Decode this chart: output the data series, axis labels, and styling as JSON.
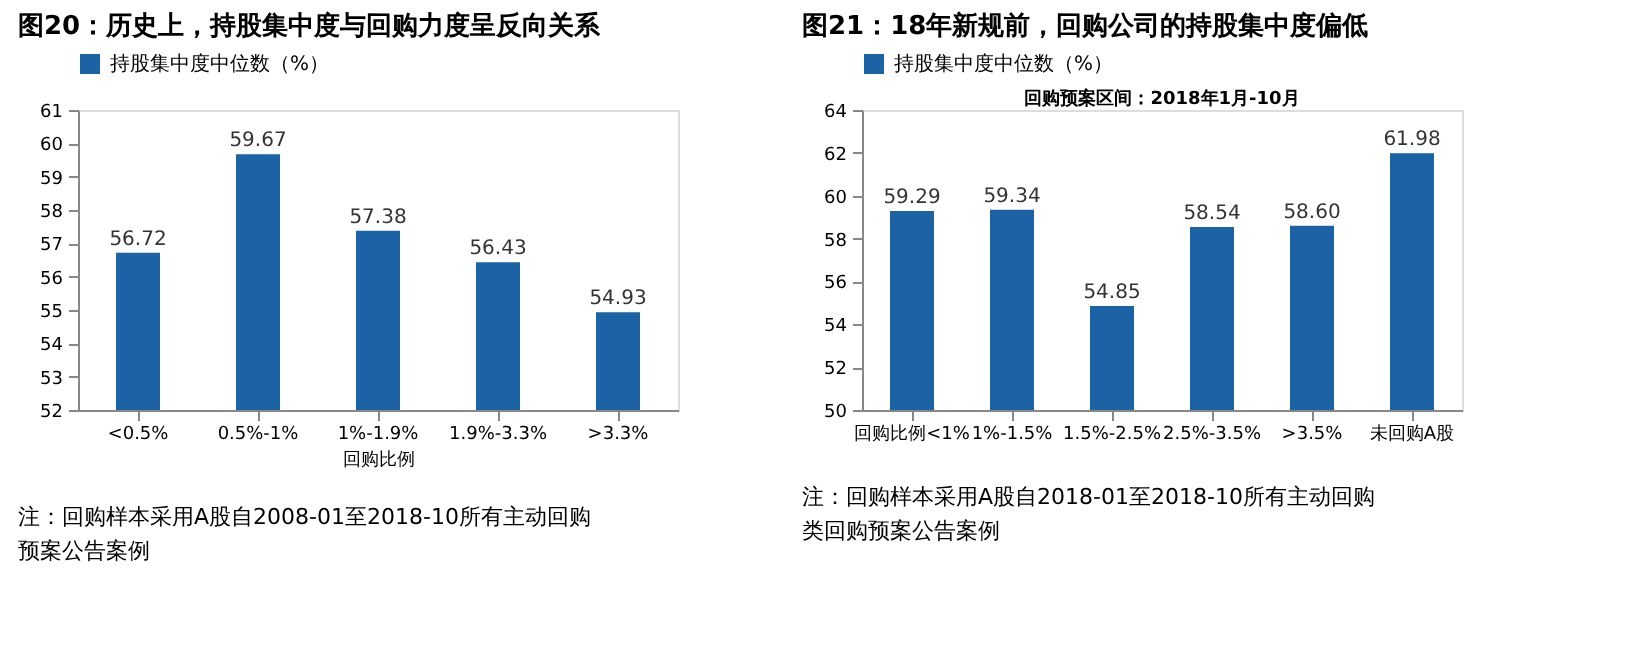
{
  "chart_data": [
    {
      "type": "bar",
      "title": "图20：历史上，持股集中度与回购力度呈反向关系",
      "categories": [
        "<0.5%",
        "0.5%-1%",
        "1%-1.9%",
        "1.9%-3.3%",
        ">3.3%"
      ],
      "xlabel": "回购比例",
      "series": [
        {
          "name": "持股集中度中位数（%）",
          "color": "#1b63a5",
          "values": [
            56.72,
            59.67,
            57.38,
            56.43,
            54.93
          ]
        }
      ],
      "value_labels": [
        "56.72",
        "59.67",
        "57.38",
        "56.43",
        "54.93"
      ],
      "ylim": [
        52,
        61
      ],
      "yticks": [
        52,
        53,
        54,
        55,
        56,
        57,
        58,
        59,
        60,
        61
      ],
      "grid": false,
      "legend": "top",
      "annotations": [
        "注：回购样本采用A股自2008-01至2018-10所有主动回购预案公告案例"
      ]
    },
    {
      "type": "bar",
      "title": "图21：18年新规前，回购公司的持股集中度偏低",
      "categories": [
        "回购比例<1%",
        "1%-1.5%",
        "1.5%-2.5%",
        "2.5%-3.5%",
        ">3.5%",
        "未回购A股"
      ],
      "series": [
        {
          "name": "持股集中度中位数（%）",
          "color": "#1b63a5",
          "values": [
            59.29,
            59.34,
            54.85,
            58.54,
            58.6,
            61.98
          ]
        }
      ],
      "value_labels": [
        "59.29",
        "59.34",
        "54.85",
        "58.54",
        "58.60",
        "61.98"
      ],
      "ylim": [
        50,
        64
      ],
      "yticks": [
        50,
        52,
        54,
        56,
        58,
        60,
        62,
        64
      ],
      "grid": false,
      "legend": "top",
      "annotations": [
        "回购预案区间：2018年1月-10月",
        "注：回购样本采用A股自2018-01至2018-10所有主动回购类回购预案公告案例"
      ]
    }
  ]
}
